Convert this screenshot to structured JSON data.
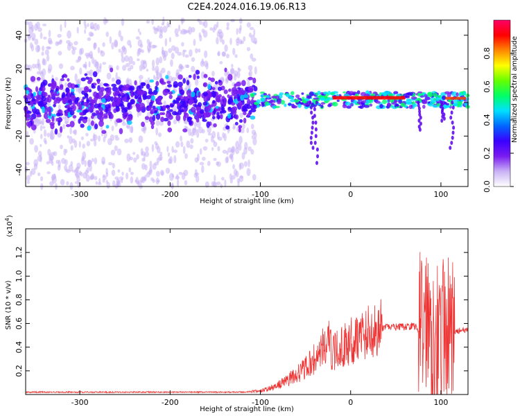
{
  "title": "C2E4.2024.016.19.06.R13",
  "chart_data": [
    {
      "type": "heatmap",
      "name": "spectrogram",
      "xlabel": "Height of straight line (km)",
      "ylabel": "Frequency (Hz)",
      "xlim": [
        -360,
        130
      ],
      "ylim": [
        -50,
        49
      ],
      "xticks": [
        -300,
        -200,
        -100,
        0,
        100
      ],
      "yticks": [
        -40,
        -20,
        0,
        20,
        40
      ],
      "colorbar": {
        "label": "Normalized spectral amplitude",
        "range": [
          0,
          1
        ],
        "ticks": [
          0.0,
          0.2,
          0.4,
          0.6,
          0.8
        ],
        "colors": [
          "#ffffff",
          "#c9b2f5",
          "#7a1cf0",
          "#3a00ff",
          "#0066ff",
          "#00e0ff",
          "#00ff66",
          "#66ff00",
          "#ffff00",
          "#ff8800",
          "#ff0000",
          "#ff0066"
        ]
      },
      "description_regions": [
        {
          "x_range": [
            -360,
            -105
          ],
          "freq_range": [
            -50,
            49
          ],
          "amplitude": 0.05
        },
        {
          "x_range": [
            -360,
            -105
          ],
          "freq_range": [
            -12,
            12
          ],
          "amplitude": 0.25
        },
        {
          "x_range": [
            -110,
            130
          ],
          "freq_range": [
            -5,
            6
          ],
          "amplitude": 0.5
        },
        {
          "x_range": [
            -20,
            60
          ],
          "freq_range": [
            0,
            3
          ],
          "amplitude": 0.95
        }
      ]
    },
    {
      "type": "line",
      "name": "snr",
      "xlabel": "Height of straight line (km)",
      "ylabel": "SNR (10 * v/v)",
      "ylabel_scale": "(x10",
      "ylabel_scale_exp": "4",
      "ylabel_scale_close": ")",
      "xlim": [
        -360,
        130
      ],
      "ylim": [
        0,
        1.4
      ],
      "xticks": [
        -300,
        -200,
        -100,
        0,
        100
      ],
      "yticks": [
        0.2,
        0.4,
        0.6,
        0.8,
        1.0,
        1.2
      ],
      "series": [
        {
          "name": "SNR",
          "color": "#ee3333",
          "x": [
            -360,
            -300,
            -200,
            -120,
            -100,
            -90,
            -80,
            -70,
            -60,
            -50,
            -40,
            -30,
            -25,
            -20,
            -10,
            0,
            10,
            20,
            30,
            40,
            50,
            60,
            70,
            75,
            80,
            85,
            90,
            95,
            100,
            105,
            110,
            120,
            130
          ],
          "y": [
            0.02,
            0.02,
            0.02,
            0.02,
            0.03,
            0.05,
            0.08,
            0.12,
            0.17,
            0.22,
            0.3,
            0.4,
            0.45,
            0.35,
            0.4,
            0.45,
            0.5,
            0.53,
            0.55,
            0.57,
            0.57,
            0.57,
            0.58,
            0.55,
            0.6,
            0.7,
            0.5,
            0.55,
            0.45,
            0.55,
            0.5,
            0.54,
            0.54
          ]
        }
      ]
    }
  ]
}
